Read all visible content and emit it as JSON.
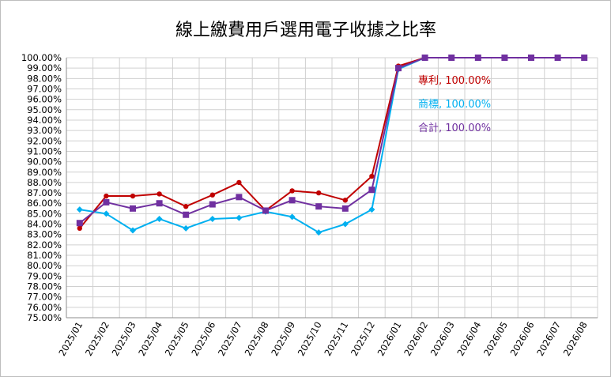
{
  "chart_data": {
    "type": "line",
    "title": "線上繳費用戶選用電子收據之比率",
    "xlabel": "",
    "ylabel": "",
    "ylim": [
      75,
      100
    ],
    "y_step": 1,
    "y_tick_format": "percent-2dp",
    "grid": true,
    "legend": "none",
    "categories": [
      "2025/01",
      "2025/02",
      "2025/03",
      "2025/04",
      "2025/05",
      "2025/06",
      "2025/07",
      "2025/08",
      "2025/09",
      "2025/10",
      "2025/11",
      "2025/12",
      "2026/01",
      "2026/02",
      "2026/03",
      "2026/04",
      "2026/05",
      "2026/06",
      "2026/07",
      "2026/08"
    ],
    "series": [
      {
        "name": "專利",
        "color": "#c00000",
        "marker": "circle",
        "values": [
          83.6,
          86.7,
          86.7,
          86.9,
          85.7,
          86.8,
          88.0,
          85.3,
          87.2,
          87.0,
          86.3,
          88.6,
          99.2,
          100,
          100,
          100,
          100,
          100,
          100,
          100
        ]
      },
      {
        "name": "商標",
        "color": "#00b0f0",
        "marker": "diamond",
        "values": [
          85.4,
          85.0,
          83.4,
          84.5,
          83.6,
          84.5,
          84.6,
          85.2,
          84.7,
          83.2,
          84.0,
          85.4,
          98.9,
          100,
          100,
          100,
          100,
          100,
          100,
          100
        ]
      },
      {
        "name": "合計",
        "color": "#7030a0",
        "marker": "square",
        "values": [
          84.1,
          86.1,
          85.5,
          86.0,
          84.9,
          85.9,
          86.6,
          85.3,
          86.3,
          85.7,
          85.5,
          87.3,
          99.0,
          100,
          100,
          100,
          100,
          100,
          100,
          100
        ]
      }
    ],
    "annotations": [
      {
        "text": "專利, 100.00%",
        "color": "#c00000"
      },
      {
        "text": "商標, 100.00%",
        "color": "#00b0f0"
      },
      {
        "text": "合計, 100.00%",
        "color": "#7030a0"
      }
    ]
  }
}
